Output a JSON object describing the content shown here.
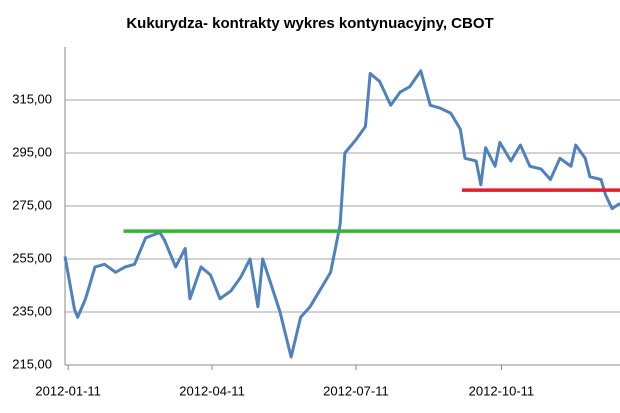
{
  "chart_data": {
    "type": "line",
    "title": "Kukurydza- kontrakty wykres kontynuacyjny, CBOT",
    "x": [
      "2012-01-09",
      "2012-01-12",
      "2012-01-15",
      "2012-01-17",
      "2012-01-22",
      "2012-01-28",
      "2012-02-03",
      "2012-02-10",
      "2012-02-16",
      "2012-02-22",
      "2012-02-29",
      "2012-03-09",
      "2012-03-12",
      "2012-03-19",
      "2012-03-25",
      "2012-03-28",
      "2012-04-04",
      "2012-04-10",
      "2012-04-16",
      "2012-04-23",
      "2012-04-29",
      "2012-05-05",
      "2012-05-10",
      "2012-05-13",
      "2012-05-18",
      "2012-05-24",
      "2012-05-31",
      "2012-06-06",
      "2012-06-12",
      "2012-06-18",
      "2012-06-25",
      "2012-07-01",
      "2012-07-04",
      "2012-07-11",
      "2012-07-17",
      "2012-07-20",
      "2012-07-26",
      "2012-08-02",
      "2012-08-08",
      "2012-08-14",
      "2012-08-21",
      "2012-08-27",
      "2012-09-02",
      "2012-09-09",
      "2012-09-15",
      "2012-09-18",
      "2012-09-25",
      "2012-09-28",
      "2012-10-01",
      "2012-10-07",
      "2012-10-10",
      "2012-10-17",
      "2012-10-23",
      "2012-10-29",
      "2012-11-05",
      "2012-11-11",
      "2012-11-17",
      "2012-11-24",
      "2012-11-27",
      "2012-12-03",
      "2012-12-06",
      "2012-12-13",
      "2012-12-16",
      "2012-12-20",
      "2012-12-25"
    ],
    "series": [
      {
        "color": "#4f81bd",
        "values": [
          256,
          246,
          236,
          233,
          240,
          252,
          253,
          250,
          252,
          253,
          263,
          265,
          262,
          252,
          259,
          240,
          252,
          249,
          240,
          243,
          248,
          255,
          237,
          255,
          246,
          235,
          218,
          233,
          237,
          243,
          250,
          268,
          295,
          300,
          305,
          325,
          322,
          313,
          318,
          320,
          326,
          313,
          312,
          310,
          304,
          293,
          292,
          283,
          297,
          290,
          299,
          292,
          298,
          290,
          289,
          285,
          293,
          290,
          298,
          293,
          286,
          285,
          279,
          274,
          276
        ]
      }
    ],
    "annotations": [
      {
        "value": 265.5,
        "color": "#2eb82e",
        "x": [
          "2012-02-15",
          "2012-12-25"
        ]
      },
      {
        "value": 281,
        "color": "#e0202a",
        "x": [
          "2012-09-16",
          "2012-12-25"
        ]
      }
    ],
    "xlim": [
      "2012-01-09",
      "2012-12-25"
    ],
    "xticks": [
      "2012-01-11",
      "2012-04-11",
      "2012-07-11",
      "2012-10-11"
    ],
    "ylim": [
      215,
      335
    ],
    "yticks": [
      {
        "value": 215,
        "label": "215,00"
      },
      {
        "value": 235,
        "label": "235,00"
      },
      {
        "value": 255,
        "label": "255,00"
      },
      {
        "value": 275,
        "label": "275,00"
      },
      {
        "value": 295,
        "label": "295,00"
      },
      {
        "value": 315,
        "label": "315,00"
      }
    ],
    "grid": true
  }
}
